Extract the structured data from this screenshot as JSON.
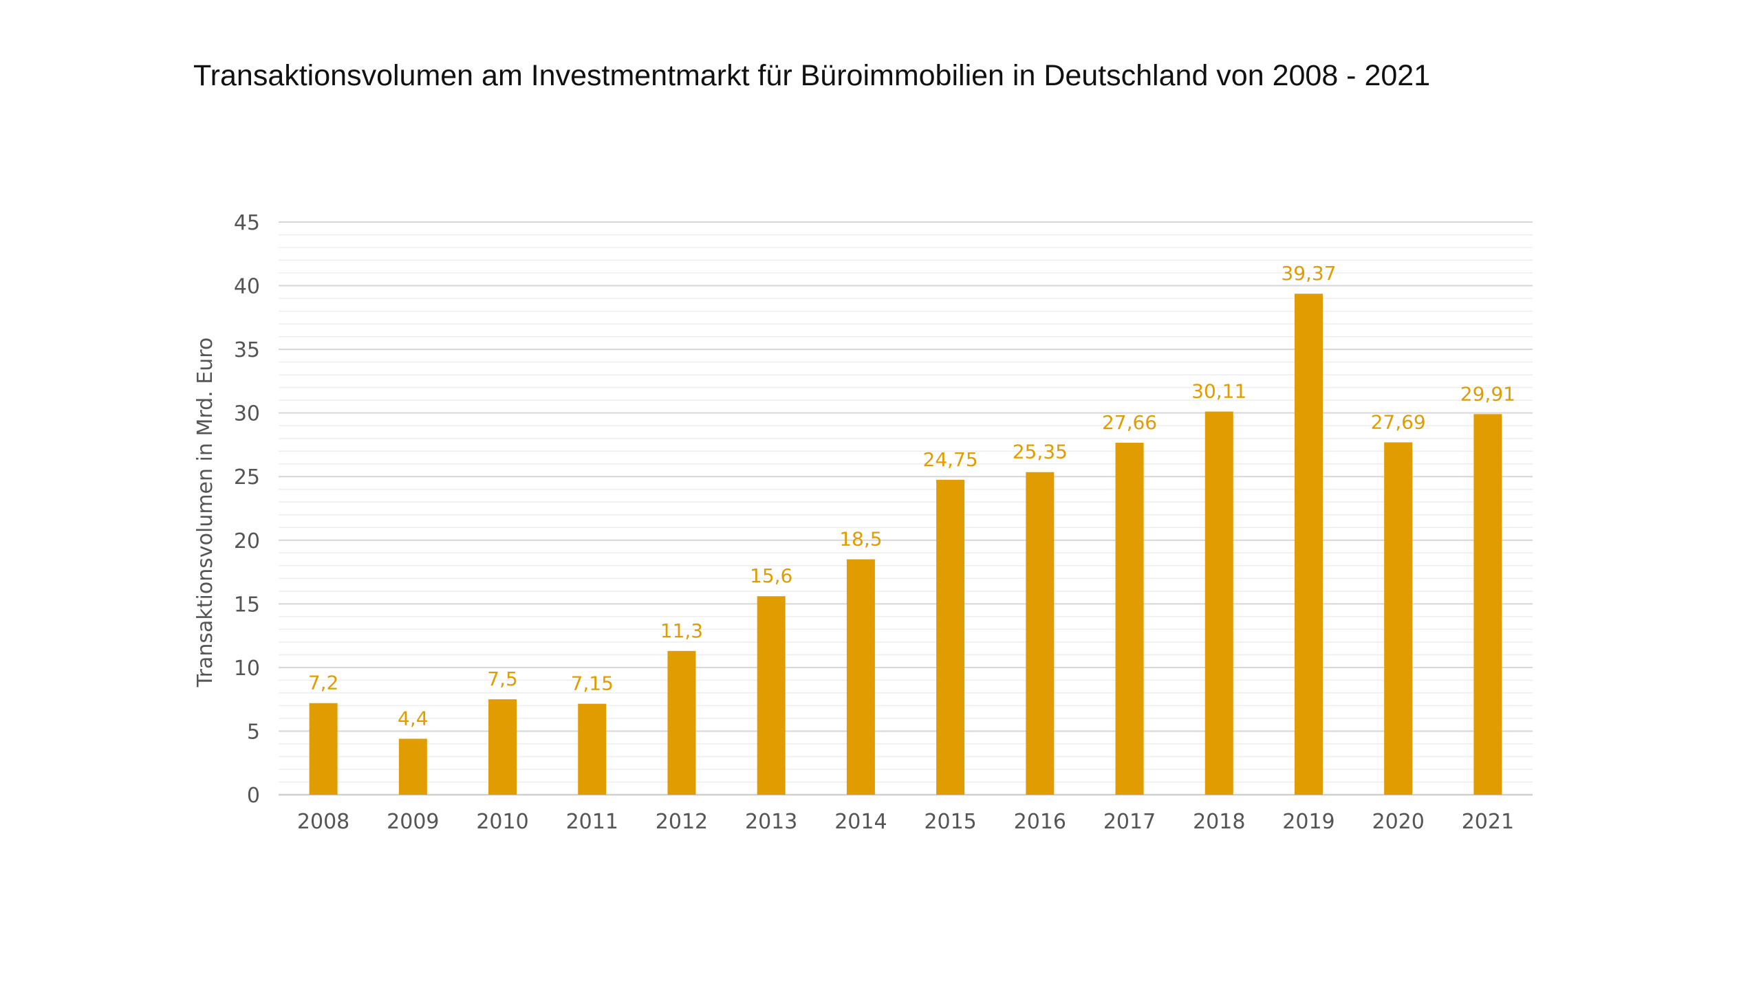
{
  "chart_data": {
    "type": "bar",
    "title": "Transaktionsvolumen am Investmentmarkt für Büroimmobilien in Deutschland von 2008 - 2021",
    "xlabel": "",
    "ylabel": "Transaktionsvolumen in Mrd. Euro",
    "ylim": [
      0,
      45
    ],
    "ytick_step": 5,
    "yticks": [
      "0",
      "5",
      "10",
      "15",
      "20",
      "25",
      "30",
      "35",
      "40",
      "45"
    ],
    "minor_grid_step": 1,
    "grid": true,
    "legend": "none",
    "bar_color": "#E09C00",
    "label_color": "#E09C00",
    "categories": [
      "2008",
      "2009",
      "2010",
      "2011",
      "2012",
      "2013",
      "2014",
      "2015",
      "2016",
      "2017",
      "2018",
      "2019",
      "2020",
      "2021"
    ],
    "values": [
      7.2,
      4.4,
      7.5,
      7.15,
      11.3,
      15.6,
      18.5,
      24.75,
      25.35,
      27.66,
      30.11,
      39.37,
      27.69,
      29.91
    ],
    "data_labels": [
      "7,2",
      "4,4",
      "7,5",
      "7,15",
      "11,3",
      "15,6",
      "18,5",
      "24,75",
      "25,35",
      "27,66",
      "30,11",
      "39,37",
      "27,69",
      "29,91"
    ]
  }
}
